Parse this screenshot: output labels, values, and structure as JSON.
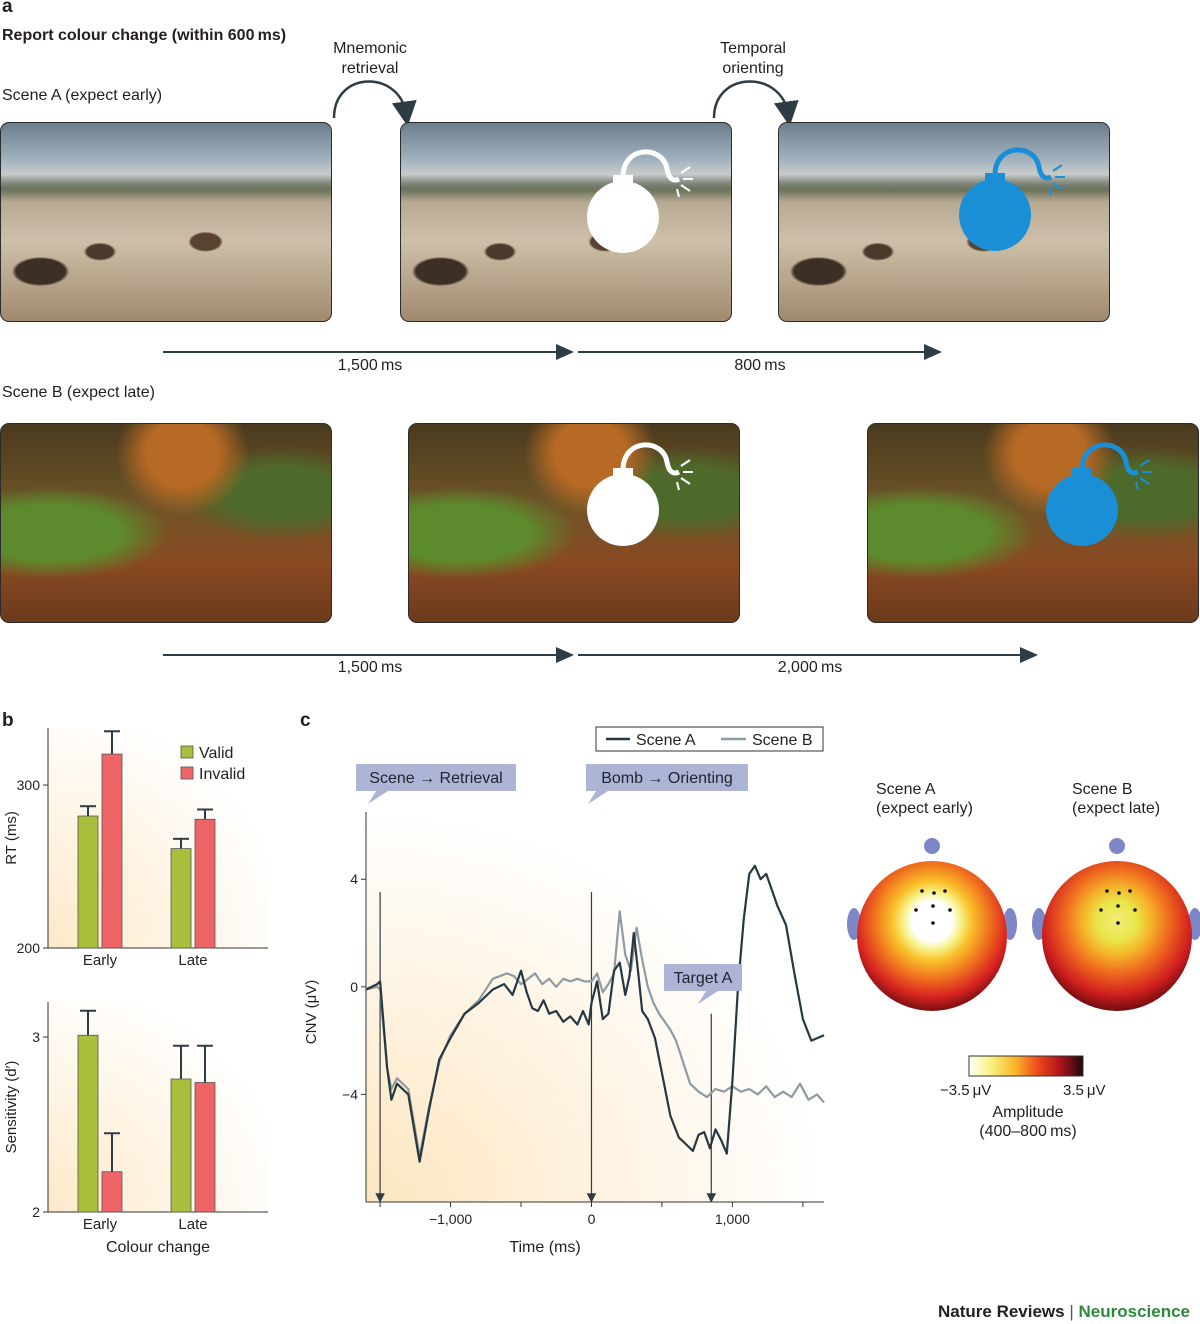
{
  "panel_a": {
    "label": "a",
    "title": "Report colour change (within 600 ms)",
    "scene_a_label": "Scene A (expect early)",
    "scene_b_label": "Scene B (expect late)",
    "arrow1_label_line1": "Mnemonic",
    "arrow1_label_line2": "retrieval",
    "arrow2_label_line1": "Temporal",
    "arrow2_label_line2": "orienting",
    "timeline_a": [
      "1,500 ms",
      "800 ms"
    ],
    "timeline_b": [
      "1,500 ms",
      "2,000 ms"
    ],
    "bomb_colors": {
      "white": "#ffffff",
      "blue": "#1b8fd6"
    }
  },
  "panel_b": {
    "label": "b",
    "legend": [
      "Valid",
      "Invalid"
    ]
  },
  "panel_c": {
    "label": "c",
    "legend": [
      "Scene A",
      "Scene B"
    ],
    "callouts": [
      "Scene → Retrieval",
      "Bomb → Orienting",
      "Target A"
    ],
    "topo_a_label_line1": "Scene A",
    "topo_a_label_line2": "(expect early)",
    "topo_b_label_line1": "Scene B",
    "topo_b_label_line2": "(expect late)",
    "colorbar_min": "−3.5 μV",
    "colorbar_max": "3.5 μV",
    "colorbar_title_line1": "Amplitude",
    "colorbar_title_line2": "(400–800 ms)"
  },
  "footer": {
    "journal": "Nature Reviews",
    "separator": "|",
    "section": "Neuroscience"
  },
  "chart_data": [
    {
      "type": "bar",
      "panel": "b-top",
      "categories": [
        "Early",
        "Late"
      ],
      "series": [
        {
          "name": "Valid",
          "values": [
            281,
            261
          ],
          "errors": [
            6,
            6
          ],
          "color": "#a9bf3c"
        },
        {
          "name": "Invalid",
          "values": [
            319,
            279
          ],
          "errors": [
            14,
            6
          ],
          "color": "#ef6466"
        }
      ],
      "ylabel": "RT (ms)",
      "yticks": [
        200,
        300
      ],
      "ylim": [
        200,
        335
      ]
    },
    {
      "type": "bar",
      "panel": "b-bottom",
      "categories": [
        "Early",
        "Late"
      ],
      "series": [
        {
          "name": "Valid",
          "values": [
            3.01,
            2.76
          ],
          "errors": [
            0.14,
            0.19
          ],
          "color": "#a9bf3c"
        },
        {
          "name": "Invalid",
          "values": [
            2.23,
            2.74
          ],
          "errors": [
            0.22,
            0.21
          ],
          "color": "#ef6466"
        }
      ],
      "xlabel": "Colour change",
      "ylabel": "Sensitivity (d′)",
      "yticks": [
        2,
        3
      ],
      "ylim": [
        2,
        3.2
      ]
    },
    {
      "type": "line",
      "panel": "c",
      "xlabel": "Time (ms)",
      "ylabel": "CNV (μV)",
      "xticks": [
        -1000,
        0,
        1000
      ],
      "xticklabels": [
        "−1,000",
        "0",
        "1,000"
      ],
      "yticks": [
        -4,
        0,
        4
      ],
      "yticklabels": [
        "−4",
        "0",
        "4"
      ],
      "xlim": [
        -1600,
        1650
      ],
      "ylim": [
        -8,
        6.5
      ],
      "markers_x": [
        -1500,
        0,
        850
      ],
      "series": [
        {
          "name": "Scene A",
          "color": "#253840",
          "x": [
            -1600,
            -1520,
            -1500,
            -1450,
            -1420,
            -1380,
            -1300,
            -1220,
            -1150,
            -1080,
            -1000,
            -900,
            -800,
            -700,
            -620,
            -560,
            -500,
            -460,
            -420,
            -380,
            -340,
            -300,
            -250,
            -200,
            -150,
            -100,
            -60,
            -20,
            0,
            40,
            80,
            120,
            160,
            200,
            240,
            270,
            300,
            330,
            360,
            400,
            450,
            500,
            560,
            620,
            680,
            720,
            760,
            800,
            840,
            880,
            920,
            960,
            1000,
            1040,
            1080,
            1120,
            1160,
            1200,
            1240,
            1280,
            1320,
            1380,
            1440,
            1500,
            1560,
            1650
          ],
          "y": [
            -0.1,
            0.1,
            0.2,
            -3.0,
            -4.2,
            -3.6,
            -4.0,
            -6.5,
            -4.5,
            -2.7,
            -1.9,
            -1.0,
            -0.6,
            -0.1,
            0.1,
            -0.3,
            0.6,
            -0.2,
            -0.8,
            -0.9,
            -0.5,
            -1.0,
            -0.9,
            -1.3,
            -1.1,
            -1.4,
            -0.9,
            -1.4,
            -0.6,
            0.2,
            -1.2,
            -1.0,
            0.6,
            0.9,
            -0.3,
            0.4,
            2.0,
            0.6,
            -0.9,
            -1.2,
            -1.9,
            -3.2,
            -4.8,
            -5.6,
            -5.9,
            -6.1,
            -5.5,
            -5.4,
            -6.0,
            -5.3,
            -5.7,
            -6.2,
            -3.5,
            0.0,
            2.5,
            4.2,
            4.5,
            4.0,
            4.2,
            3.6,
            3.0,
            2.3,
            0.5,
            -1.2,
            -2.0,
            -1.8
          ]
        },
        {
          "name": "Scene B",
          "color": "#8e9ba2",
          "x": [
            -1600,
            -1520,
            -1500,
            -1450,
            -1420,
            -1380,
            -1300,
            -1220,
            -1150,
            -1080,
            -1000,
            -900,
            -800,
            -700,
            -600,
            -550,
            -500,
            -450,
            -400,
            -350,
            -300,
            -250,
            -200,
            -150,
            -100,
            -50,
            0,
            40,
            80,
            120,
            160,
            200,
            240,
            280,
            320,
            360,
            400,
            440,
            480,
            520,
            560,
            600,
            650,
            700,
            760,
            820,
            880,
            940,
            1000,
            1060,
            1120,
            1180,
            1240,
            1300,
            1360,
            1420,
            1480,
            1540,
            1600,
            1650
          ],
          "y": [
            -0.1,
            0.0,
            -0.1,
            -3.0,
            -3.8,
            -3.4,
            -3.8,
            -6.3,
            -4.4,
            -2.8,
            -1.8,
            -1.0,
            -0.5,
            0.3,
            0.5,
            0.4,
            0.1,
            0.3,
            0.5,
            0.1,
            0.3,
            0.0,
            0.3,
            0.2,
            0.3,
            0.2,
            0.2,
            0.5,
            -0.2,
            0.1,
            0.5,
            2.8,
            1.2,
            0.6,
            2.2,
            1.0,
            0.0,
            -0.6,
            -1.0,
            -1.3,
            -1.6,
            -2.0,
            -2.8,
            -3.6,
            -3.9,
            -4.1,
            -3.8,
            -3.9,
            -3.7,
            -3.9,
            -3.8,
            -4.0,
            -3.7,
            -4.1,
            -3.9,
            -4.1,
            -3.6,
            -4.2,
            -4.0,
            -4.3
          ]
        }
      ]
    }
  ]
}
